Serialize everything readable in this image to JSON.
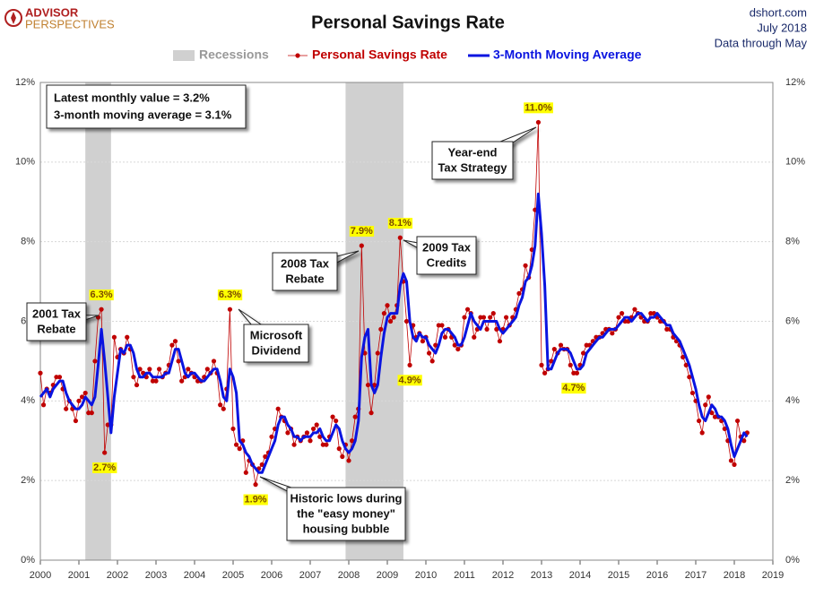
{
  "chart_data": {
    "type": "line",
    "title": "Personal Savings Rate",
    "logo": [
      "ADVISOR",
      "PERSPECTIVES"
    ],
    "source": [
      "dshort.com",
      "July 2018",
      "Data through May"
    ],
    "info": [
      "Latest monthly value = 3.2%",
      "3-month moving average = 3.1%"
    ],
    "xlim": [
      2000,
      2019
    ],
    "xticks": [
      2000,
      2001,
      2002,
      2003,
      2004,
      2005,
      2006,
      2007,
      2008,
      2009,
      2010,
      2011,
      2012,
      2013,
      2014,
      2015,
      2016,
      2017,
      2018,
      2019
    ],
    "ylim": [
      0,
      12
    ],
    "yticks": [
      {
        "value": 0,
        "label": "0%"
      },
      {
        "value": 2,
        "label": "2%"
      },
      {
        "value": 4,
        "label": "4%"
      },
      {
        "value": 6,
        "label": "6%"
      },
      {
        "value": 8,
        "label": "8%"
      },
      {
        "value": 10,
        "label": "10%"
      },
      {
        "value": 12,
        "label": "12%"
      }
    ],
    "grid": true,
    "recessions": {
      "name": "Recessions",
      "color": "#d0d0d0",
      "spans": [
        [
          2001.167,
          2001.833
        ],
        [
          2007.917,
          2009.417
        ]
      ]
    },
    "x": [
      2000,
      2000.083,
      2000.167,
      2000.25,
      2000.333,
      2000.417,
      2000.5,
      2000.583,
      2000.667,
      2000.75,
      2000.833,
      2000.917,
      2001,
      2001.083,
      2001.167,
      2001.25,
      2001.333,
      2001.417,
      2001.5,
      2001.583,
      2001.667,
      2001.75,
      2001.833,
      2001.917,
      2002,
      2002.083,
      2002.167,
      2002.25,
      2002.333,
      2002.417,
      2002.5,
      2002.583,
      2002.667,
      2002.75,
      2002.833,
      2002.917,
      2003,
      2003.083,
      2003.167,
      2003.25,
      2003.333,
      2003.417,
      2003.5,
      2003.583,
      2003.667,
      2003.75,
      2003.833,
      2003.917,
      2004,
      2004.083,
      2004.167,
      2004.25,
      2004.333,
      2004.417,
      2004.5,
      2004.583,
      2004.667,
      2004.75,
      2004.833,
      2004.917,
      2005,
      2005.083,
      2005.167,
      2005.25,
      2005.333,
      2005.417,
      2005.5,
      2005.583,
      2005.667,
      2005.75,
      2005.833,
      2005.917,
      2006,
      2006.083,
      2006.167,
      2006.25,
      2006.333,
      2006.417,
      2006.5,
      2006.583,
      2006.667,
      2006.75,
      2006.833,
      2006.917,
      2007,
      2007.083,
      2007.167,
      2007.25,
      2007.333,
      2007.417,
      2007.5,
      2007.583,
      2007.667,
      2007.75,
      2007.833,
      2007.917,
      2008,
      2008.083,
      2008.167,
      2008.25,
      2008.333,
      2008.417,
      2008.5,
      2008.583,
      2008.667,
      2008.75,
      2008.833,
      2008.917,
      2009,
      2009.083,
      2009.167,
      2009.25,
      2009.333,
      2009.417,
      2009.5,
      2009.583,
      2009.667,
      2009.75,
      2009.833,
      2009.917,
      2010,
      2010.083,
      2010.167,
      2010.25,
      2010.333,
      2010.417,
      2010.5,
      2010.583,
      2010.667,
      2010.75,
      2010.833,
      2010.917,
      2011,
      2011.083,
      2011.167,
      2011.25,
      2011.333,
      2011.417,
      2011.5,
      2011.583,
      2011.667,
      2011.75,
      2011.833,
      2011.917,
      2012,
      2012.083,
      2012.167,
      2012.25,
      2012.333,
      2012.417,
      2012.5,
      2012.583,
      2012.667,
      2012.75,
      2012.833,
      2012.917,
      2013,
      2013.083,
      2013.167,
      2013.25,
      2013.333,
      2013.417,
      2013.5,
      2013.583,
      2013.667,
      2013.75,
      2013.833,
      2013.917,
      2014,
      2014.083,
      2014.167,
      2014.25,
      2014.333,
      2014.417,
      2014.5,
      2014.583,
      2014.667,
      2014.75,
      2014.833,
      2014.917,
      2015,
      2015.083,
      2015.167,
      2015.25,
      2015.333,
      2015.417,
      2015.5,
      2015.583,
      2015.667,
      2015.75,
      2015.833,
      2015.917,
      2016,
      2016.083,
      2016.167,
      2016.25,
      2016.333,
      2016.417,
      2016.5,
      2016.583,
      2016.667,
      2016.75,
      2016.833,
      2016.917,
      2017,
      2017.083,
      2017.167,
      2017.25,
      2017.333,
      2017.417,
      2017.5,
      2017.583,
      2017.667,
      2017.75,
      2017.833,
      2017.917,
      2018,
      2018.083,
      2018.167,
      2018.25,
      2018.333
    ],
    "series": [
      {
        "name": "Personal Savings Rate",
        "color": "#c00000",
        "values": [
          4.7,
          3.9,
          4.3,
          4.2,
          4.4,
          4.6,
          4.6,
          4.3,
          3.8,
          4.0,
          3.8,
          3.5,
          4.0,
          4.1,
          4.2,
          3.7,
          3.7,
          5.0,
          6.1,
          6.3,
          2.7,
          3.4,
          3.4,
          5.6,
          5.1,
          5.3,
          5.2,
          5.6,
          5.3,
          4.6,
          4.4,
          4.8,
          4.7,
          4.6,
          4.8,
          4.5,
          4.5,
          4.8,
          4.6,
          4.7,
          4.9,
          5.4,
          5.5,
          5.0,
          4.5,
          4.6,
          4.8,
          4.7,
          4.6,
          4.5,
          4.5,
          4.6,
          4.8,
          4.7,
          5.0,
          4.7,
          3.9,
          3.8,
          4.3,
          6.3,
          3.3,
          2.9,
          2.8,
          3.0,
          2.2,
          2.5,
          2.4,
          1.9,
          2.3,
          2.4,
          2.6,
          2.7,
          3.1,
          3.3,
          3.8,
          3.6,
          3.5,
          3.2,
          3.3,
          2.9,
          3.1,
          3.0,
          3.1,
          3.2,
          3.0,
          3.3,
          3.4,
          3.1,
          2.9,
          2.9,
          3.1,
          3.6,
          3.5,
          2.8,
          2.6,
          2.9,
          2.5,
          3.0,
          3.6,
          3.8,
          7.9,
          5.2,
          4.4,
          3.7,
          4.4,
          5.2,
          5.8,
          6.2,
          6.4,
          6.0,
          6.1,
          6.4,
          8.1,
          7.0,
          6.0,
          4.9,
          5.9,
          5.6,
          5.7,
          5.5,
          5.6,
          5.2,
          5.0,
          5.4,
          5.9,
          5.9,
          5.6,
          5.8,
          5.6,
          5.4,
          5.3,
          5.4,
          6.1,
          6.3,
          6.2,
          5.6,
          5.8,
          6.1,
          6.1,
          5.8,
          6.1,
          6.2,
          5.8,
          5.5,
          5.8,
          6.1,
          5.9,
          6.1,
          6.3,
          6.7,
          6.8,
          7.4,
          7.1,
          7.8,
          8.8,
          11.0,
          4.9,
          4.7,
          4.8,
          5.0,
          5.3,
          5.2,
          5.4,
          5.3,
          5.3,
          4.9,
          4.7,
          4.7,
          4.9,
          5.2,
          5.4,
          5.4,
          5.5,
          5.6,
          5.6,
          5.7,
          5.8,
          5.8,
          5.7,
          5.8,
          6.1,
          6.2,
          6.0,
          6.0,
          6.1,
          6.3,
          6.2,
          6.1,
          6.0,
          6.0,
          6.2,
          6.2,
          6.1,
          6.0,
          6.0,
          5.8,
          5.8,
          5.6,
          5.5,
          5.4,
          5.1,
          4.9,
          4.6,
          4.2,
          4.0,
          3.5,
          3.2,
          3.9,
          4.1,
          3.7,
          3.6,
          3.6,
          3.5,
          3.3,
          3.0,
          2.5,
          2.4,
          3.5,
          3.1,
          3.0,
          3.2
        ]
      },
      {
        "name": "3-Month Moving Average",
        "color": "#0a14e0",
        "values": [
          4.1,
          4.2,
          4.3,
          4.1,
          4.3,
          4.4,
          4.5,
          4.5,
          4.2,
          4.0,
          3.9,
          3.8,
          3.8,
          3.9,
          4.1,
          4.0,
          3.9,
          4.1,
          4.9,
          5.8,
          5.0,
          4.1,
          3.2,
          4.1,
          4.7,
          5.3,
          5.2,
          5.4,
          5.4,
          5.2,
          4.8,
          4.6,
          4.6,
          4.7,
          4.7,
          4.6,
          4.6,
          4.6,
          4.6,
          4.7,
          4.7,
          5.0,
          5.3,
          5.3,
          5.0,
          4.7,
          4.6,
          4.7,
          4.7,
          4.6,
          4.5,
          4.5,
          4.6,
          4.7,
          4.8,
          4.8,
          4.5,
          4.1,
          4.0,
          4.8,
          4.6,
          4.2,
          3.0,
          2.9,
          2.7,
          2.6,
          2.4,
          2.3,
          2.2,
          2.2,
          2.4,
          2.6,
          2.8,
          3.0,
          3.4,
          3.6,
          3.6,
          3.4,
          3.3,
          3.1,
          3.1,
          3.0,
          3.1,
          3.1,
          3.1,
          3.2,
          3.2,
          3.3,
          3.1,
          3.0,
          3.0,
          3.2,
          3.4,
          3.3,
          3.0,
          2.8,
          2.7,
          2.8,
          3.0,
          3.5,
          5.1,
          5.6,
          5.8,
          4.4,
          4.2,
          4.4,
          5.1,
          5.7,
          6.1,
          6.2,
          6.2,
          6.2,
          6.9,
          7.2,
          7.0,
          6.0,
          5.6,
          5.5,
          5.7,
          5.6,
          5.6,
          5.4,
          5.3,
          5.2,
          5.4,
          5.7,
          5.8,
          5.8,
          5.7,
          5.6,
          5.4,
          5.4,
          5.6,
          5.9,
          6.2,
          6.0,
          5.9,
          5.8,
          6.0,
          6.0,
          6.0,
          6.0,
          6.0,
          5.8,
          5.7,
          5.8,
          5.9,
          6.0,
          6.1,
          6.4,
          6.6,
          7.0,
          7.1,
          7.4,
          7.9,
          9.2,
          8.2,
          6.9,
          4.8,
          4.8,
          5.0,
          5.2,
          5.3,
          5.3,
          5.3,
          5.2,
          5.0,
          4.8,
          4.8,
          4.9,
          5.2,
          5.3,
          5.4,
          5.5,
          5.6,
          5.6,
          5.7,
          5.8,
          5.8,
          5.8,
          5.9,
          6.0,
          6.1,
          6.1,
          6.0,
          6.1,
          6.2,
          6.2,
          6.1,
          6.0,
          6.1,
          6.1,
          6.2,
          6.1,
          6.0,
          5.9,
          5.9,
          5.7,
          5.6,
          5.5,
          5.3,
          5.1,
          4.9,
          4.6,
          4.3,
          3.9,
          3.6,
          3.5,
          3.7,
          3.9,
          3.8,
          3.6,
          3.6,
          3.5,
          3.3,
          2.9,
          2.6,
          2.8,
          3.0,
          3.2,
          3.1
        ]
      }
    ],
    "labels": [
      {
        "x": 2001.583,
        "y": 6.3,
        "text": "6.3%"
      },
      {
        "x": 2001.667,
        "y": 2.7,
        "text": "2.7%"
      },
      {
        "x": 2004.917,
        "y": 6.3,
        "text": "6.3%"
      },
      {
        "x": 2005.583,
        "y": 1.9,
        "text": "1.9%"
      },
      {
        "x": 2008.333,
        "y": 7.9,
        "text": "7.9%"
      },
      {
        "x": 2009.333,
        "y": 8.1,
        "text": "8.1%"
      },
      {
        "x": 2009.583,
        "y": 4.9,
        "text": "4.9%"
      },
      {
        "x": 2012.917,
        "y": 11.0,
        "text": "11.0%"
      },
      {
        "x": 2013.833,
        "y": 4.7,
        "text": "4.7%"
      }
    ],
    "callouts": [
      [
        "2001 Tax",
        "Rebate"
      ],
      [
        "Microsoft",
        "Dividend"
      ],
      [
        "2008 Tax",
        "Rebate"
      ],
      [
        "2009 Tax",
        "Credits"
      ],
      [
        "Year-end",
        "Tax Strategy"
      ],
      [
        "Historic lows during",
        "the \"easy money\"",
        "housing bubble"
      ]
    ]
  }
}
